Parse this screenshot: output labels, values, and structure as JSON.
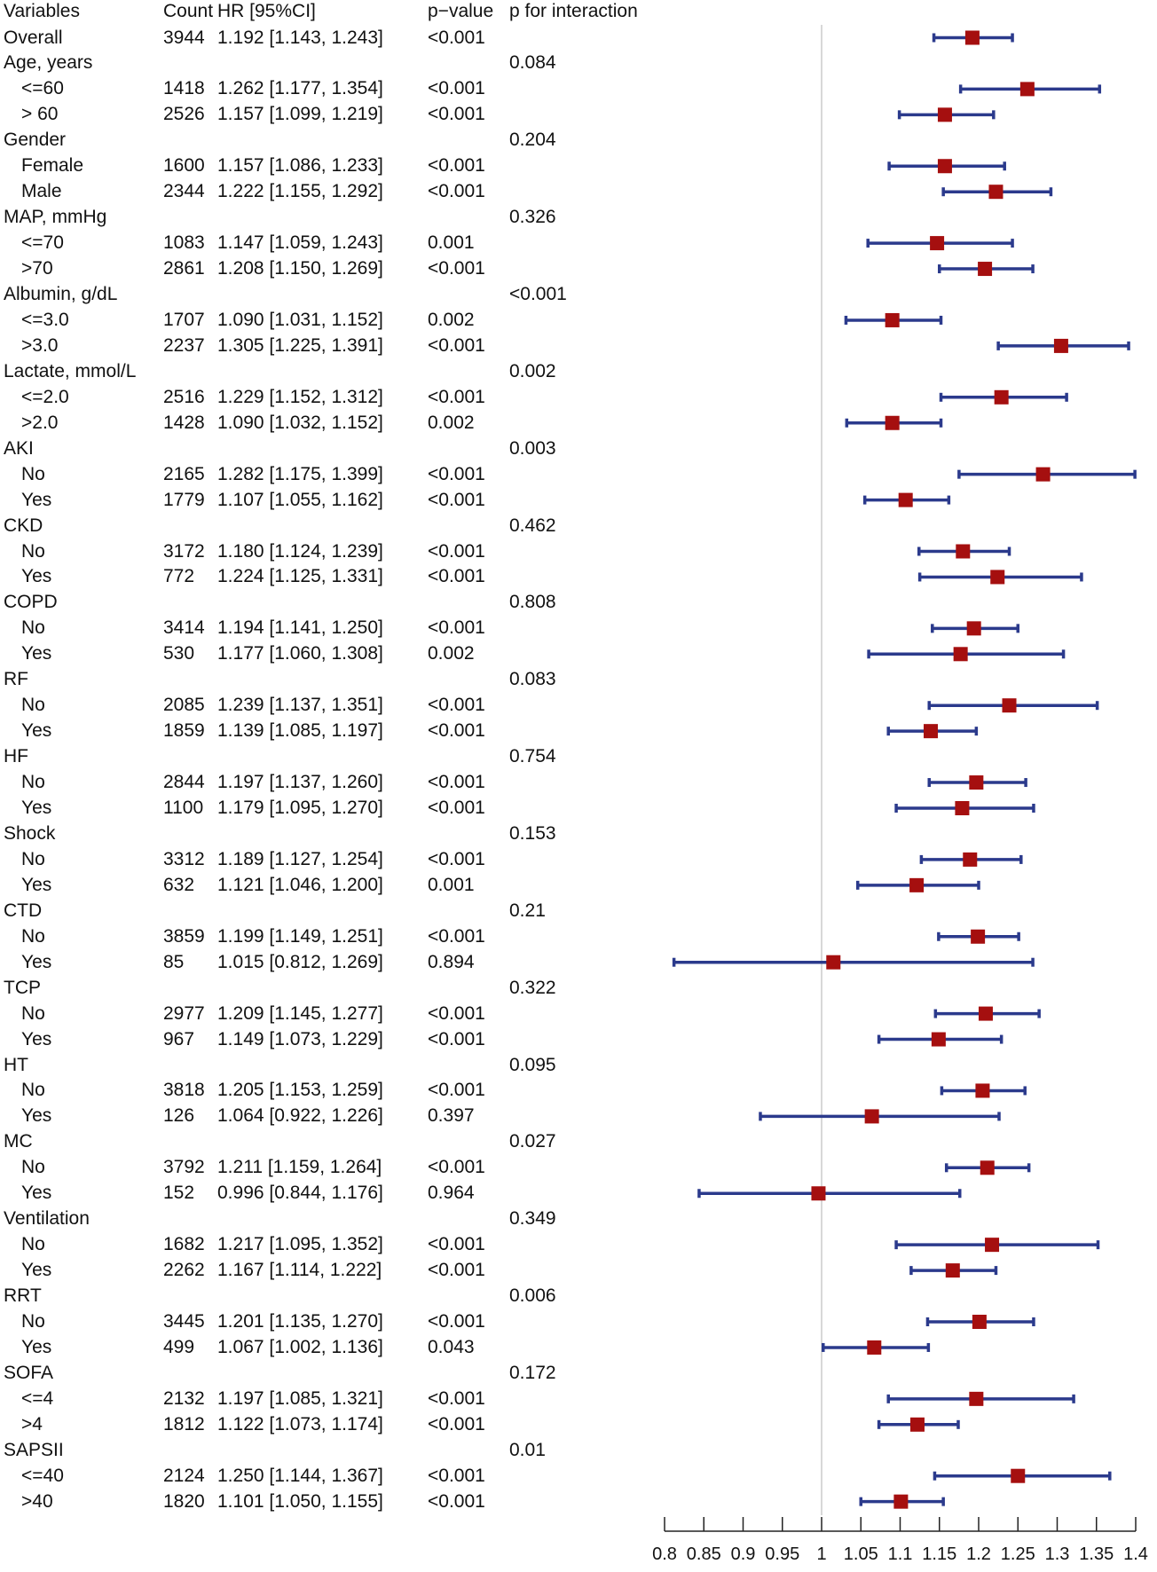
{
  "chart_data": {
    "type": "forest",
    "headers": {
      "variables": "Variables",
      "count": "Count",
      "hr": "HR [95%CI]",
      "p": "p−value",
      "p_int": "p for interaction"
    },
    "xlim": [
      0.8,
      1.4
    ],
    "reference_line": 1,
    "x_ticks": [
      0.8,
      0.85,
      0.9,
      0.95,
      1,
      1.05,
      1.1,
      1.15,
      1.2,
      1.25,
      1.3,
      1.35,
      1.4
    ],
    "x_tick_labels": [
      "0.8",
      "0.85",
      "0.9",
      "0.95",
      "1",
      "1.05",
      "1.1",
      "1.15",
      "1.2",
      "1.25",
      "1.3",
      "1.35",
      "1.4"
    ],
    "colors": {
      "ci": "#2b3a8c",
      "point": "#a50f0f",
      "ref": "#cccccc"
    },
    "rows": [
      {
        "label": "Overall",
        "sub": false,
        "count": "3944",
        "hr": "1.192 [1.143, 1.243]",
        "p": "<0.001",
        "p_int": "",
        "est": 1.192,
        "lo": 1.143,
        "hi": 1.243
      },
      {
        "label": "Age, years",
        "sub": false,
        "count": "",
        "hr": "",
        "p": "",
        "p_int": "0.084"
      },
      {
        "label": "<=60",
        "sub": true,
        "count": "1418",
        "hr": "1.262 [1.177, 1.354]",
        "p": "<0.001",
        "p_int": "",
        "est": 1.262,
        "lo": 1.177,
        "hi": 1.354
      },
      {
        "label": "> 60",
        "sub": true,
        "count": "2526",
        "hr": "1.157 [1.099, 1.219]",
        "p": "<0.001",
        "p_int": "",
        "est": 1.157,
        "lo": 1.099,
        "hi": 1.219
      },
      {
        "label": "Gender",
        "sub": false,
        "count": "",
        "hr": "",
        "p": "",
        "p_int": "0.204"
      },
      {
        "label": "Female",
        "sub": true,
        "count": "1600",
        "hr": "1.157 [1.086, 1.233]",
        "p": "<0.001",
        "p_int": "",
        "est": 1.157,
        "lo": 1.086,
        "hi": 1.233
      },
      {
        "label": "Male",
        "sub": true,
        "count": "2344",
        "hr": "1.222 [1.155, 1.292]",
        "p": "<0.001",
        "p_int": "",
        "est": 1.222,
        "lo": 1.155,
        "hi": 1.292
      },
      {
        "label": "MAP, mmHg",
        "sub": false,
        "count": "",
        "hr": "",
        "p": "",
        "p_int": "0.326"
      },
      {
        "label": "<=70",
        "sub": true,
        "count": "1083",
        "hr": "1.147 [1.059, 1.243]",
        "p": "0.001",
        "p_int": "",
        "est": 1.147,
        "lo": 1.059,
        "hi": 1.243
      },
      {
        "label": ">70",
        "sub": true,
        "count": "2861",
        "hr": "1.208 [1.150, 1.269]",
        "p": "<0.001",
        "p_int": "",
        "est": 1.208,
        "lo": 1.15,
        "hi": 1.269
      },
      {
        "label": "Albumin, g/dL",
        "sub": false,
        "count": "",
        "hr": "",
        "p": "",
        "p_int": "<0.001"
      },
      {
        "label": "<=3.0",
        "sub": true,
        "count": "1707",
        "hr": "1.090 [1.031, 1.152]",
        "p": "0.002",
        "p_int": "",
        "est": 1.09,
        "lo": 1.031,
        "hi": 1.152
      },
      {
        "label": ">3.0",
        "sub": true,
        "count": "2237",
        "hr": "1.305 [1.225, 1.391]",
        "p": "<0.001",
        "p_int": "",
        "est": 1.305,
        "lo": 1.225,
        "hi": 1.391
      },
      {
        "label": "Lactate, mmol/L",
        "sub": false,
        "count": "",
        "hr": "",
        "p": "",
        "p_int": "0.002"
      },
      {
        "label": "<=2.0",
        "sub": true,
        "count": "2516",
        "hr": "1.229 [1.152, 1.312]",
        "p": "<0.001",
        "p_int": "",
        "est": 1.229,
        "lo": 1.152,
        "hi": 1.312
      },
      {
        "label": ">2.0",
        "sub": true,
        "count": "1428",
        "hr": "1.090 [1.032, 1.152]",
        "p": "0.002",
        "p_int": "",
        "est": 1.09,
        "lo": 1.032,
        "hi": 1.152
      },
      {
        "label": "AKI",
        "sub": false,
        "count": "",
        "hr": "",
        "p": "",
        "p_int": "0.003"
      },
      {
        "label": "No",
        "sub": true,
        "count": "2165",
        "hr": "1.282 [1.175, 1.399]",
        "p": "<0.001",
        "p_int": "",
        "est": 1.282,
        "lo": 1.175,
        "hi": 1.399
      },
      {
        "label": "Yes",
        "sub": true,
        "count": "1779",
        "hr": "1.107 [1.055, 1.162]",
        "p": "<0.001",
        "p_int": "",
        "est": 1.107,
        "lo": 1.055,
        "hi": 1.162
      },
      {
        "label": "CKD",
        "sub": false,
        "count": "",
        "hr": "",
        "p": "",
        "p_int": "0.462"
      },
      {
        "label": "No",
        "sub": true,
        "count": "3172",
        "hr": "1.180 [1.124, 1.239]",
        "p": "<0.001",
        "p_int": "",
        "est": 1.18,
        "lo": 1.124,
        "hi": 1.239
      },
      {
        "label": "Yes",
        "sub": true,
        "count": "772",
        "hr": "1.224 [1.125, 1.331]",
        "p": "<0.001",
        "p_int": "",
        "est": 1.224,
        "lo": 1.125,
        "hi": 1.331
      },
      {
        "label": "COPD",
        "sub": false,
        "count": "",
        "hr": "",
        "p": "",
        "p_int": "0.808"
      },
      {
        "label": "No",
        "sub": true,
        "count": "3414",
        "hr": "1.194 [1.141, 1.250]",
        "p": "<0.001",
        "p_int": "",
        "est": 1.194,
        "lo": 1.141,
        "hi": 1.25
      },
      {
        "label": "Yes",
        "sub": true,
        "count": "530",
        "hr": "1.177 [1.060, 1.308]",
        "p": "0.002",
        "p_int": "",
        "est": 1.177,
        "lo": 1.06,
        "hi": 1.308
      },
      {
        "label": "RF",
        "sub": false,
        "count": "",
        "hr": "",
        "p": "",
        "p_int": "0.083"
      },
      {
        "label": "No",
        "sub": true,
        "count": "2085",
        "hr": "1.239 [1.137, 1.351]",
        "p": "<0.001",
        "p_int": "",
        "est": 1.239,
        "lo": 1.137,
        "hi": 1.351
      },
      {
        "label": "Yes",
        "sub": true,
        "count": "1859",
        "hr": "1.139 [1.085, 1.197]",
        "p": "<0.001",
        "p_int": "",
        "est": 1.139,
        "lo": 1.085,
        "hi": 1.197
      },
      {
        "label": "HF",
        "sub": false,
        "count": "",
        "hr": "",
        "p": "",
        "p_int": "0.754"
      },
      {
        "label": "No",
        "sub": true,
        "count": "2844",
        "hr": "1.197 [1.137, 1.260]",
        "p": "<0.001",
        "p_int": "",
        "est": 1.197,
        "lo": 1.137,
        "hi": 1.26
      },
      {
        "label": "Yes",
        "sub": true,
        "count": "1100",
        "hr": "1.179 [1.095, 1.270]",
        "p": "<0.001",
        "p_int": "",
        "est": 1.179,
        "lo": 1.095,
        "hi": 1.27
      },
      {
        "label": "Shock",
        "sub": false,
        "count": "",
        "hr": "",
        "p": "",
        "p_int": "0.153"
      },
      {
        "label": "No",
        "sub": true,
        "count": "3312",
        "hr": "1.189 [1.127, 1.254]",
        "p": "<0.001",
        "p_int": "",
        "est": 1.189,
        "lo": 1.127,
        "hi": 1.254
      },
      {
        "label": "Yes",
        "sub": true,
        "count": "632",
        "hr": "1.121 [1.046, 1.200]",
        "p": "0.001",
        "p_int": "",
        "est": 1.121,
        "lo": 1.046,
        "hi": 1.2
      },
      {
        "label": "CTD",
        "sub": false,
        "count": "",
        "hr": "",
        "p": "",
        "p_int": "0.21"
      },
      {
        "label": "No",
        "sub": true,
        "count": "3859",
        "hr": "1.199 [1.149, 1.251]",
        "p": "<0.001",
        "p_int": "",
        "est": 1.199,
        "lo": 1.149,
        "hi": 1.251
      },
      {
        "label": "Yes",
        "sub": true,
        "count": "85",
        "hr": "1.015 [0.812, 1.269]",
        "p": "0.894",
        "p_int": "",
        "est": 1.015,
        "lo": 0.812,
        "hi": 1.269
      },
      {
        "label": "TCP",
        "sub": false,
        "count": "",
        "hr": "",
        "p": "",
        "p_int": "0.322"
      },
      {
        "label": "No",
        "sub": true,
        "count": "2977",
        "hr": "1.209 [1.145, 1.277]",
        "p": "<0.001",
        "p_int": "",
        "est": 1.209,
        "lo": 1.145,
        "hi": 1.277
      },
      {
        "label": "Yes",
        "sub": true,
        "count": "967",
        "hr": "1.149 [1.073, 1.229]",
        "p": "<0.001",
        "p_int": "",
        "est": 1.149,
        "lo": 1.073,
        "hi": 1.229
      },
      {
        "label": "HT",
        "sub": false,
        "count": "",
        "hr": "",
        "p": "",
        "p_int": "0.095"
      },
      {
        "label": "No",
        "sub": true,
        "count": "3818",
        "hr": "1.205 [1.153, 1.259]",
        "p": "<0.001",
        "p_int": "",
        "est": 1.205,
        "lo": 1.153,
        "hi": 1.259
      },
      {
        "label": "Yes",
        "sub": true,
        "count": "126",
        "hr": "1.064 [0.922, 1.226]",
        "p": "0.397",
        "p_int": "",
        "est": 1.064,
        "lo": 0.922,
        "hi": 1.226
      },
      {
        "label": "MC",
        "sub": false,
        "count": "",
        "hr": "",
        "p": "",
        "p_int": "0.027"
      },
      {
        "label": "No",
        "sub": true,
        "count": "3792",
        "hr": "1.211 [1.159, 1.264]",
        "p": "<0.001",
        "p_int": "",
        "est": 1.211,
        "lo": 1.159,
        "hi": 1.264
      },
      {
        "label": "Yes",
        "sub": true,
        "count": "152",
        "hr": "0.996 [0.844, 1.176]",
        "p": "0.964",
        "p_int": "",
        "est": 0.996,
        "lo": 0.844,
        "hi": 1.176
      },
      {
        "label": "Ventilation",
        "sub": false,
        "count": "",
        "hr": "",
        "p": "",
        "p_int": "0.349"
      },
      {
        "label": "No",
        "sub": true,
        "count": "1682",
        "hr": "1.217 [1.095, 1.352]",
        "p": "<0.001",
        "p_int": "",
        "est": 1.217,
        "lo": 1.095,
        "hi": 1.352
      },
      {
        "label": "Yes",
        "sub": true,
        "count": "2262",
        "hr": "1.167 [1.114, 1.222]",
        "p": "<0.001",
        "p_int": "",
        "est": 1.167,
        "lo": 1.114,
        "hi": 1.222
      },
      {
        "label": "RRT",
        "sub": false,
        "count": "",
        "hr": "",
        "p": "",
        "p_int": "0.006"
      },
      {
        "label": "No",
        "sub": true,
        "count": "3445",
        "hr": "1.201 [1.135, 1.270]",
        "p": "<0.001",
        "p_int": "",
        "est": 1.201,
        "lo": 1.135,
        "hi": 1.27
      },
      {
        "label": "Yes",
        "sub": true,
        "count": "499",
        "hr": "1.067 [1.002, 1.136]",
        "p": "0.043",
        "p_int": "",
        "est": 1.067,
        "lo": 1.002,
        "hi": 1.136
      },
      {
        "label": "SOFA",
        "sub": false,
        "count": "",
        "hr": "",
        "p": "",
        "p_int": "0.172"
      },
      {
        "label": "<=4",
        "sub": true,
        "count": "2132",
        "hr": "1.197 [1.085, 1.321]",
        "p": "<0.001",
        "p_int": "",
        "est": 1.197,
        "lo": 1.085,
        "hi": 1.321
      },
      {
        "label": ">4",
        "sub": true,
        "count": "1812",
        "hr": "1.122 [1.073, 1.174]",
        "p": "<0.001",
        "p_int": "",
        "est": 1.122,
        "lo": 1.073,
        "hi": 1.174
      },
      {
        "label": "SAPSII",
        "sub": false,
        "count": "",
        "hr": "",
        "p": "",
        "p_int": "0.01"
      },
      {
        "label": "<=40",
        "sub": true,
        "count": "2124",
        "hr": "1.250 [1.144, 1.367]",
        "p": "<0.001",
        "p_int": "",
        "est": 1.25,
        "lo": 1.144,
        "hi": 1.367
      },
      {
        "label": ">40",
        "sub": true,
        "count": "1820",
        "hr": "1.101 [1.050, 1.155]",
        "p": "<0.001",
        "p_int": "",
        "est": 1.101,
        "lo": 1.05,
        "hi": 1.155
      }
    ]
  }
}
